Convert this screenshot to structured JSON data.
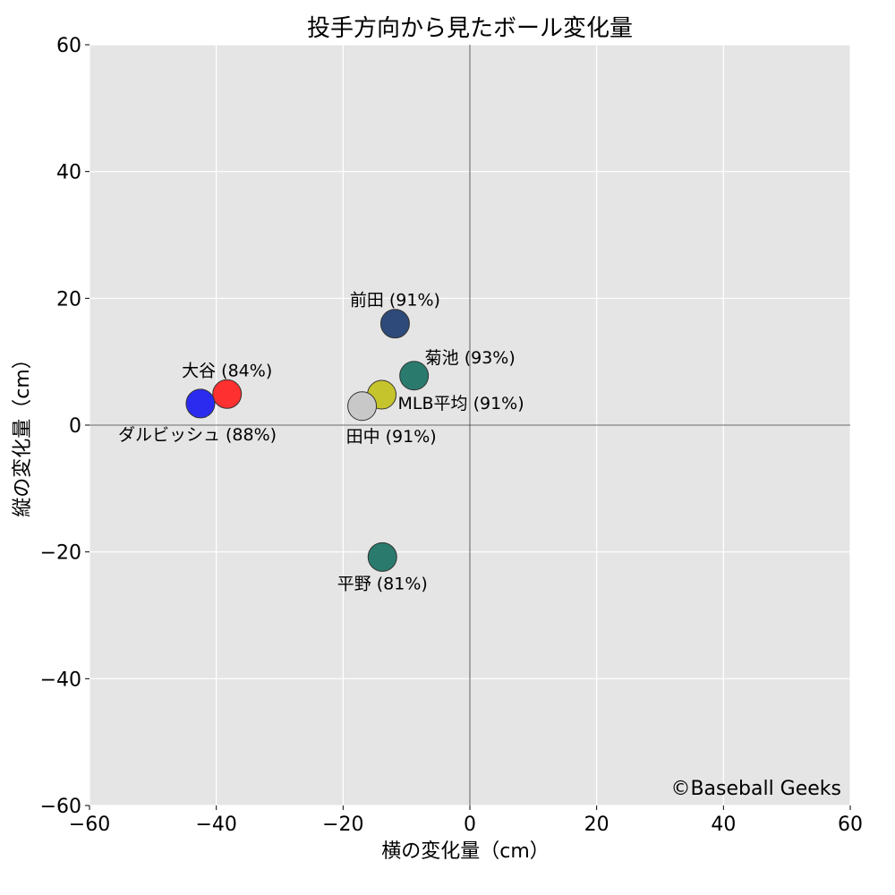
{
  "chart_data": {
    "type": "scatter",
    "title": "投手方向から見たボール変化量",
    "xlabel": "横の変化量（cm）",
    "ylabel": "縦の変化量（cm）",
    "xlim": [
      -60,
      60
    ],
    "ylim": [
      -60,
      60
    ],
    "xticks": [
      -60,
      -40,
      -20,
      0,
      20,
      40,
      60
    ],
    "yticks": [
      -60,
      -40,
      -20,
      0,
      20,
      40,
      60
    ],
    "xtick_labels": [
      "−60",
      "−40",
      "−20",
      "0",
      "20",
      "40",
      "60"
    ],
    "ytick_labels": [
      "−60",
      "−40",
      "−20",
      "0",
      "20",
      "40",
      "60"
    ],
    "grid": true,
    "background": "#e5e5e5",
    "points": [
      {
        "label": "前田 (91%)",
        "x": -11.8,
        "y": 16.0,
        "color": "#2e4a7a",
        "label_pos": "above"
      },
      {
        "label": "菊池 (93%)",
        "x": -8.8,
        "y": 7.8,
        "color": "#2a7b6e",
        "label_pos": "upper-right"
      },
      {
        "label": "MLB平均 (91%)",
        "x": -13.9,
        "y": 4.8,
        "color": "#c6c42c",
        "label_pos": "lower-right"
      },
      {
        "label": "田中 (91%)",
        "x": -17.0,
        "y": 3.0,
        "color": "#c8c8c8",
        "label_pos": "below-right"
      },
      {
        "label": "大谷 (84%)",
        "x": -38.3,
        "y": 4.9,
        "color": "#ff3030",
        "label_pos": "above"
      },
      {
        "label": "ダルビッシュ (88%)",
        "x": -42.5,
        "y": 3.4,
        "color": "#2b2bf0",
        "label_pos": "below-right"
      },
      {
        "label": "平野 (81%)",
        "x": -13.8,
        "y": -20.8,
        "color": "#2a7b6e",
        "label_pos": "below"
      }
    ],
    "watermark": "©Baseball Geeks"
  }
}
